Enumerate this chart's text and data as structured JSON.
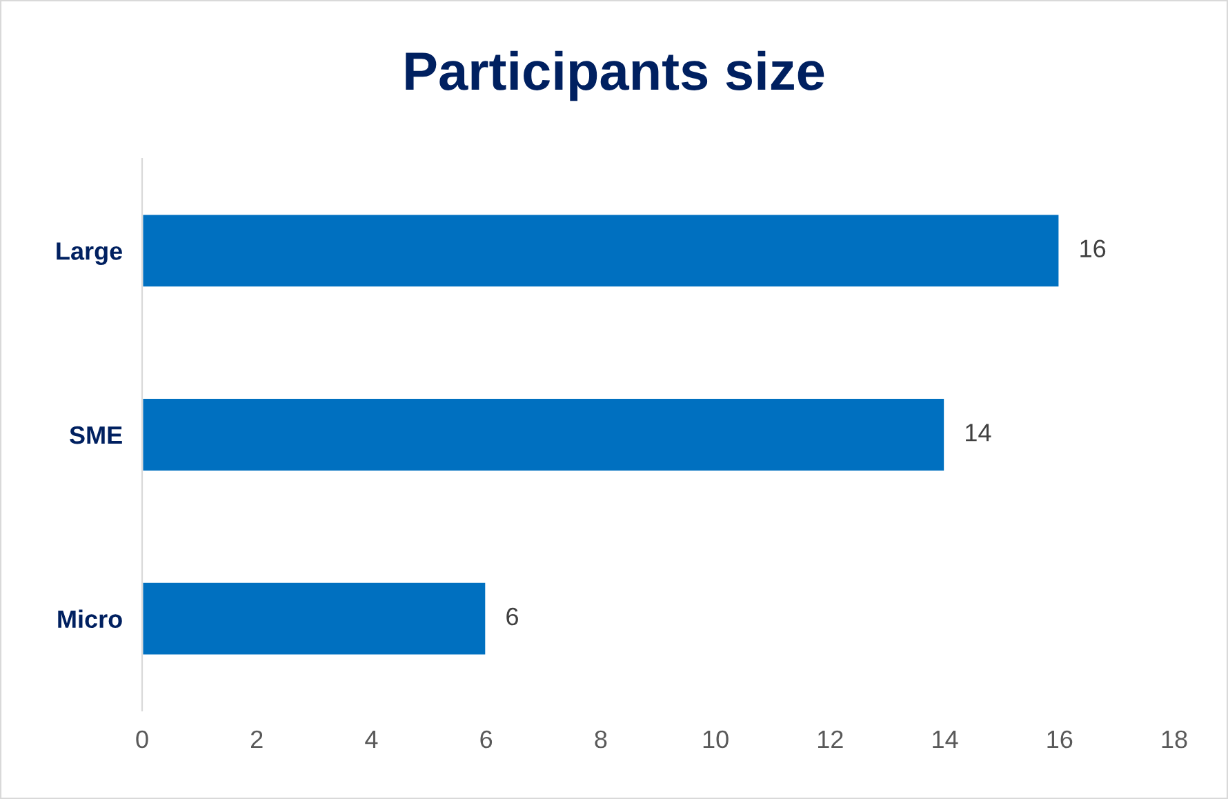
{
  "chart_data": {
    "type": "bar",
    "orientation": "horizontal",
    "title": "Participants size",
    "categories": [
      "Large",
      "SME",
      "Micro"
    ],
    "values": [
      16,
      14,
      6
    ],
    "color": "#0070c0",
    "xlim": [
      0,
      18
    ],
    "xticks": [
      0,
      2,
      4,
      6,
      8,
      10,
      12,
      14,
      16,
      18
    ],
    "grid": false,
    "data_labels": true
  }
}
